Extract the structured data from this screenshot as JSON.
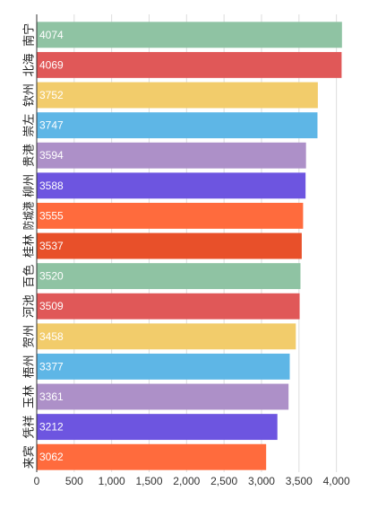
{
  "chart_data": {
    "type": "bar",
    "orientation": "horizontal",
    "categories": [
      "南宁",
      "北海",
      "钦州",
      "崇左",
      "贵港",
      "柳州",
      "防城港",
      "桂林",
      "百色",
      "河池",
      "贺州",
      "梧州",
      "玉林",
      "凭祥",
      "来宾"
    ],
    "values": [
      4074,
      4069,
      3752,
      3747,
      3594,
      3588,
      3555,
      3537,
      3520,
      3509,
      3458,
      3377,
      3361,
      3212,
      3062
    ],
    "value_labels": [
      "4074",
      "4069",
      "3752",
      "3747",
      "3594",
      "3588",
      "3555",
      "3537",
      "3520",
      "3509",
      "3458",
      "3377",
      "3361",
      "3212",
      "3062"
    ],
    "x_ticks": [
      0,
      500,
      1000,
      1500,
      2000,
      2500,
      3000,
      3500,
      4000
    ],
    "x_tick_labels": [
      "0",
      "500",
      "1,000",
      "1,500",
      "2,000",
      "2,500",
      "3,000",
      "3,500",
      "4,000"
    ],
    "xlim": [
      0,
      4100
    ],
    "grid": true,
    "legend": "none",
    "title": "",
    "xlabel": "",
    "ylabel": "",
    "colors": [
      "#8fc3a3",
      "#e05858",
      "#f2cc6b",
      "#5eb6e6",
      "#ad90c8",
      "#6d55e0",
      "#ff6b3d",
      "#e8502a"
    ]
  }
}
